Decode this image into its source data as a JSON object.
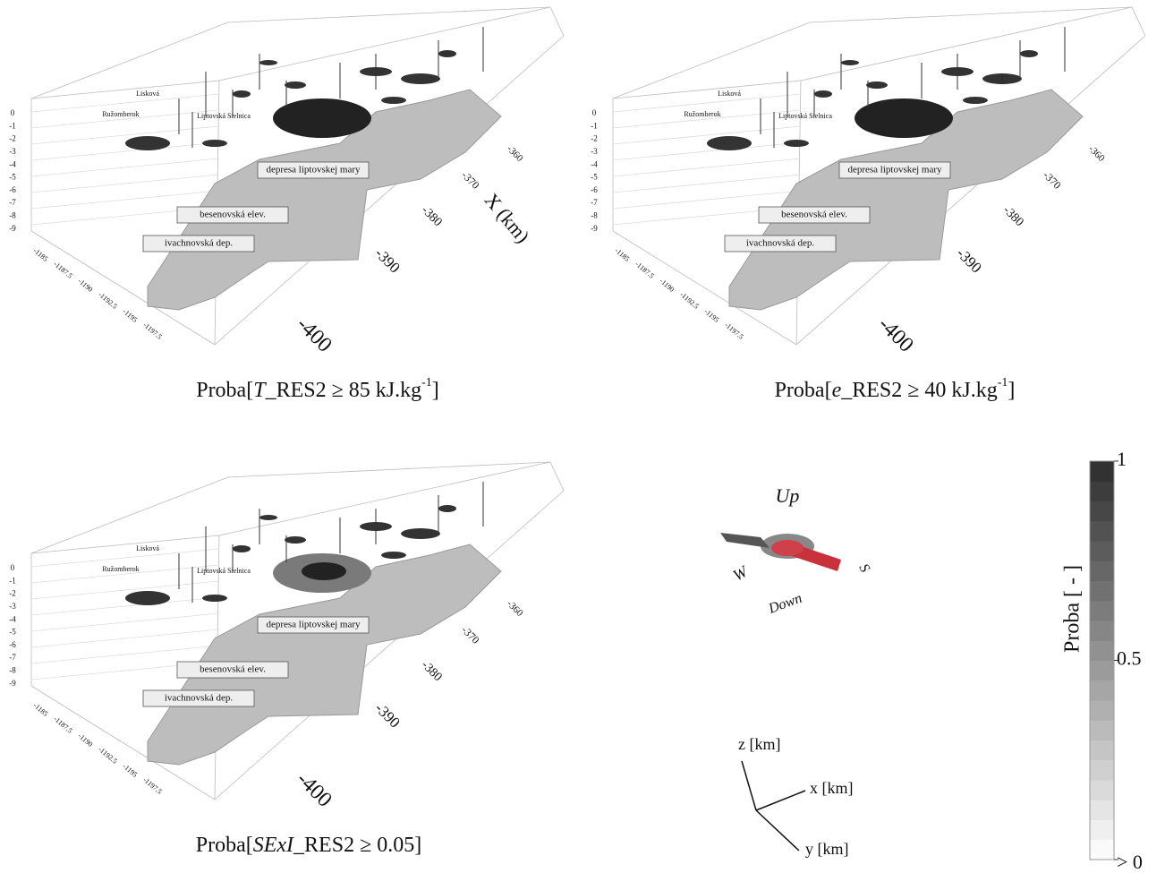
{
  "panels": [
    {
      "caption": {
        "open": "Proba[",
        "variable": "T",
        "rest": "_RES2 ≥ 85 kJ.kg",
        "sup": "-1",
        "close": "]"
      },
      "x_title": "X (km)"
    },
    {
      "caption": {
        "open": "Proba[",
        "variable": "e",
        "rest": "_RES2 ≥ 40 kJ.kg",
        "sup": "-1",
        "close": "]"
      }
    },
    {
      "caption": {
        "open": "Proba[",
        "variable": "SExI",
        "rest": "_RES2 ≥ 0.05",
        "close": "]"
      }
    }
  ],
  "axes": {
    "z_ticks": [
      "0",
      "-1",
      "-2",
      "-3",
      "-4",
      "-5",
      "-6",
      "-7",
      "-8",
      "-9"
    ],
    "y_ticks": [
      "-1185",
      "-1187.5",
      "-1190",
      "-1192.5",
      "-1195",
      "-1197.5"
    ],
    "x_ticks": [
      "-360",
      "-370",
      "-380",
      "-390",
      "-400"
    ]
  },
  "regions": [
    "depresa liptovskej mary",
    "besenovská elev.",
    "ivachnovská dep."
  ],
  "places": [
    "Ružomberok",
    "Lisková",
    "Liptovská Sielnica"
  ],
  "compass": {
    "up": "Up",
    "down": "Down",
    "west": "W",
    "south": "S"
  },
  "triad": {
    "z": "z [km]",
    "x": "x [km]",
    "y": "y [km]"
  },
  "colorbar": {
    "title": "Proba [ - ]",
    "ticks": [
      1,
      0.5,
      {
        "value": 0,
        "label": "> 0"
      }
    ]
  }
}
